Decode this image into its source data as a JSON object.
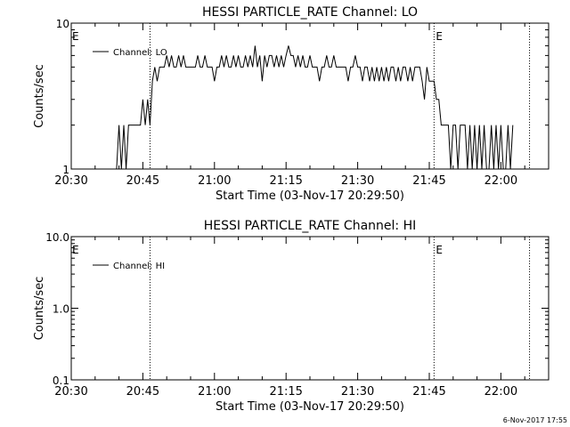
{
  "footer": {
    "timestamp": "6-Nov-2017 17:55"
  },
  "chart_data": [
    {
      "type": "line",
      "title": "HESSI PARTICLE_RATE Channel: LO",
      "xlabel": "Start Time (03-Nov-17 20:29:50)",
      "ylabel": "Counts/sec",
      "yscale": "log",
      "xlim": [
        "20:30",
        "22:10"
      ],
      "ylim": [
        1,
        10
      ],
      "xticks": [
        "20:30",
        "20:45",
        "21:00",
        "21:15",
        "21:30",
        "21:45",
        "22:00"
      ],
      "yticks": [
        "1",
        "10"
      ],
      "legend": {
        "position": "top-left"
      },
      "event_lines": [
        {
          "time": "20:46.5",
          "label": ""
        },
        {
          "time": "21:46",
          "label": "E"
        },
        {
          "time": "22:06",
          "label": ""
        }
      ],
      "left_marker": "E",
      "series": [
        {
          "name": "Channel: LO",
          "color": "#000000",
          "points": [
            [
              "20:39.5",
              1
            ],
            [
              "20:40.0",
              2
            ],
            [
              "20:40.5",
              1
            ],
            [
              "20:41.0",
              2
            ],
            [
              "20:41.5",
              1
            ],
            [
              "20:42.0",
              2
            ],
            [
              "20:42.5",
              2
            ],
            [
              "20:43.0",
              2
            ],
            [
              "20:43.5",
              2
            ],
            [
              "20:44.0",
              2
            ],
            [
              "20:44.5",
              2
            ],
            [
              "20:45.0",
              3
            ],
            [
              "20:45.5",
              2
            ],
            [
              "20:46.0",
              3
            ],
            [
              "20:46.5",
              2
            ],
            [
              "20:47.0",
              4
            ],
            [
              "20:47.5",
              5
            ],
            [
              "20:48.0",
              4
            ],
            [
              "20:48.5",
              5
            ],
            [
              "20:49.0",
              5
            ],
            [
              "20:49.5",
              5
            ],
            [
              "20:50.0",
              6
            ],
            [
              "20:50.5",
              5
            ],
            [
              "20:51.0",
              6
            ],
            [
              "20:51.5",
              5
            ],
            [
              "20:52.0",
              5
            ],
            [
              "20:52.5",
              6
            ],
            [
              "20:53.0",
              5
            ],
            [
              "20:53.5",
              6
            ],
            [
              "20:54.0",
              5
            ],
            [
              "20:54.5",
              5
            ],
            [
              "20:55.0",
              5
            ],
            [
              "20:55.5",
              5
            ],
            [
              "20:56.0",
              5
            ],
            [
              "20:56.5",
              6
            ],
            [
              "20:57.0",
              5
            ],
            [
              "20:57.5",
              5
            ],
            [
              "20:58.0",
              6
            ],
            [
              "20:58.5",
              5
            ],
            [
              "20:59.0",
              5
            ],
            [
              "20:59.5",
              5
            ],
            [
              "21:00.0",
              4
            ],
            [
              "21:00.5",
              5
            ],
            [
              "21:01.0",
              5
            ],
            [
              "21:01.5",
              6
            ],
            [
              "21:02.0",
              5
            ],
            [
              "21:02.5",
              6
            ],
            [
              "21:03.0",
              5
            ],
            [
              "21:03.5",
              5
            ],
            [
              "21:04.0",
              6
            ],
            [
              "21:04.5",
              5
            ],
            [
              "21:05.0",
              6
            ],
            [
              "21:05.5",
              5
            ],
            [
              "21:06.0",
              5
            ],
            [
              "21:06.5",
              6
            ],
            [
              "21:07.0",
              5
            ],
            [
              "21:07.5",
              6
            ],
            [
              "21:08.0",
              5
            ],
            [
              "21:08.5",
              7
            ],
            [
              "21:09.0",
              5
            ],
            [
              "21:09.5",
              6
            ],
            [
              "21:10.0",
              4
            ],
            [
              "21:10.5",
              6
            ],
            [
              "21:11.0",
              5
            ],
            [
              "21:11.5",
              6
            ],
            [
              "21:12.0",
              6
            ],
            [
              "21:12.5",
              5
            ],
            [
              "21:13.0",
              6
            ],
            [
              "21:13.5",
              5
            ],
            [
              "21:14.0",
              6
            ],
            [
              "21:14.5",
              5
            ],
            [
              "21:15.0",
              6
            ],
            [
              "21:15.5",
              7
            ],
            [
              "21:16.0",
              6
            ],
            [
              "21:16.5",
              6
            ],
            [
              "21:17.0",
              5
            ],
            [
              "21:17.5",
              6
            ],
            [
              "21:18.0",
              5
            ],
            [
              "21:18.5",
              6
            ],
            [
              "21:19.0",
              5
            ],
            [
              "21:19.5",
              5
            ],
            [
              "21:20.0",
              6
            ],
            [
              "21:20.5",
              5
            ],
            [
              "21:21.0",
              5
            ],
            [
              "21:21.5",
              5
            ],
            [
              "21:22.0",
              4
            ],
            [
              "21:22.5",
              5
            ],
            [
              "21:23.0",
              5
            ],
            [
              "21:23.5",
              6
            ],
            [
              "21:24.0",
              5
            ],
            [
              "21:24.5",
              5
            ],
            [
              "21:25.0",
              6
            ],
            [
              "21:25.5",
              5
            ],
            [
              "21:26.0",
              5
            ],
            [
              "21:26.5",
              5
            ],
            [
              "21:27.0",
              5
            ],
            [
              "21:27.5",
              5
            ],
            [
              "21:28.0",
              4
            ],
            [
              "21:28.5",
              5
            ],
            [
              "21:29.0",
              5
            ],
            [
              "21:29.5",
              6
            ],
            [
              "21:30.0",
              5
            ],
            [
              "21:30.5",
              5
            ],
            [
              "21:31.0",
              4
            ],
            [
              "21:31.5",
              5
            ],
            [
              "21:32.0",
              5
            ],
            [
              "21:32.5",
              4
            ],
            [
              "21:33.0",
              5
            ],
            [
              "21:33.5",
              4
            ],
            [
              "21:34.0",
              5
            ],
            [
              "21:34.5",
              4
            ],
            [
              "21:35.0",
              5
            ],
            [
              "21:35.5",
              4
            ],
            [
              "21:36.0",
              5
            ],
            [
              "21:36.5",
              4
            ],
            [
              "21:37.0",
              5
            ],
            [
              "21:37.5",
              5
            ],
            [
              "21:38.0",
              4
            ],
            [
              "21:38.5",
              5
            ],
            [
              "21:39.0",
              4
            ],
            [
              "21:39.5",
              5
            ],
            [
              "21:40.0",
              5
            ],
            [
              "21:40.5",
              4
            ],
            [
              "21:41.0",
              5
            ],
            [
              "21:41.5",
              4
            ],
            [
              "21:42.0",
              5
            ],
            [
              "21:42.5",
              5
            ],
            [
              "21:43.0",
              5
            ],
            [
              "21:43.5",
              4
            ],
            [
              "21:44.0",
              3
            ],
            [
              "21:44.5",
              5
            ],
            [
              "21:45.0",
              4
            ],
            [
              "21:45.5",
              4
            ],
            [
              "21:46.0",
              4
            ],
            [
              "21:46.5",
              3
            ],
            [
              "21:47.0",
              3
            ],
            [
              "21:47.5",
              2
            ],
            [
              "21:48.0",
              2
            ],
            [
              "21:48.5",
              2
            ],
            [
              "21:49.0",
              2
            ],
            [
              "21:49.5",
              1
            ],
            [
              "21:50.0",
              2
            ],
            [
              "21:50.5",
              2
            ],
            [
              "21:51.0",
              1
            ],
            [
              "21:51.5",
              2
            ],
            [
              "21:52.0",
              2
            ],
            [
              "21:52.5",
              2
            ],
            [
              "21:53.0",
              1
            ],
            [
              "21:53.5",
              2
            ],
            [
              "21:54.0",
              1
            ],
            [
              "21:54.5",
              2
            ],
            [
              "21:55.0",
              1
            ],
            [
              "21:55.5",
              2
            ],
            [
              "21:56.0",
              1
            ],
            [
              "21:56.5",
              2
            ],
            [
              "21:57.0",
              1
            ],
            [
              "21:57.5",
              1
            ],
            [
              "21:58.0",
              2
            ],
            [
              "21:58.5",
              1
            ],
            [
              "21:59.0",
              2
            ],
            [
              "21:59.5",
              1
            ],
            [
              "22:00.0",
              2
            ],
            [
              "22:00.5",
              1
            ],
            [
              "22:01.0",
              1
            ],
            [
              "22:01.5",
              2
            ],
            [
              "22:02.0",
              1
            ],
            [
              "22:02.5",
              2
            ]
          ]
        }
      ]
    },
    {
      "type": "line",
      "title": "HESSI PARTICLE_RATE Channel: HI",
      "xlabel": "Start Time (03-Nov-17 20:29:50)",
      "ylabel": "Counts/sec",
      "yscale": "log",
      "xlim": [
        "20:30",
        "22:10"
      ],
      "ylim": [
        0.1,
        10
      ],
      "xticks": [
        "20:30",
        "20:45",
        "21:00",
        "21:15",
        "21:30",
        "21:45",
        "22:00"
      ],
      "yticks": [
        "0.1",
        "1.0",
        "10.0"
      ],
      "legend": {
        "position": "top-left"
      },
      "event_lines": [
        {
          "time": "20:46.5",
          "label": ""
        },
        {
          "time": "21:46",
          "label": "E"
        },
        {
          "time": "22:06",
          "label": ""
        }
      ],
      "left_marker": "E",
      "series": [
        {
          "name": "Channel: HI",
          "color": "#000000",
          "points": []
        }
      ]
    }
  ]
}
